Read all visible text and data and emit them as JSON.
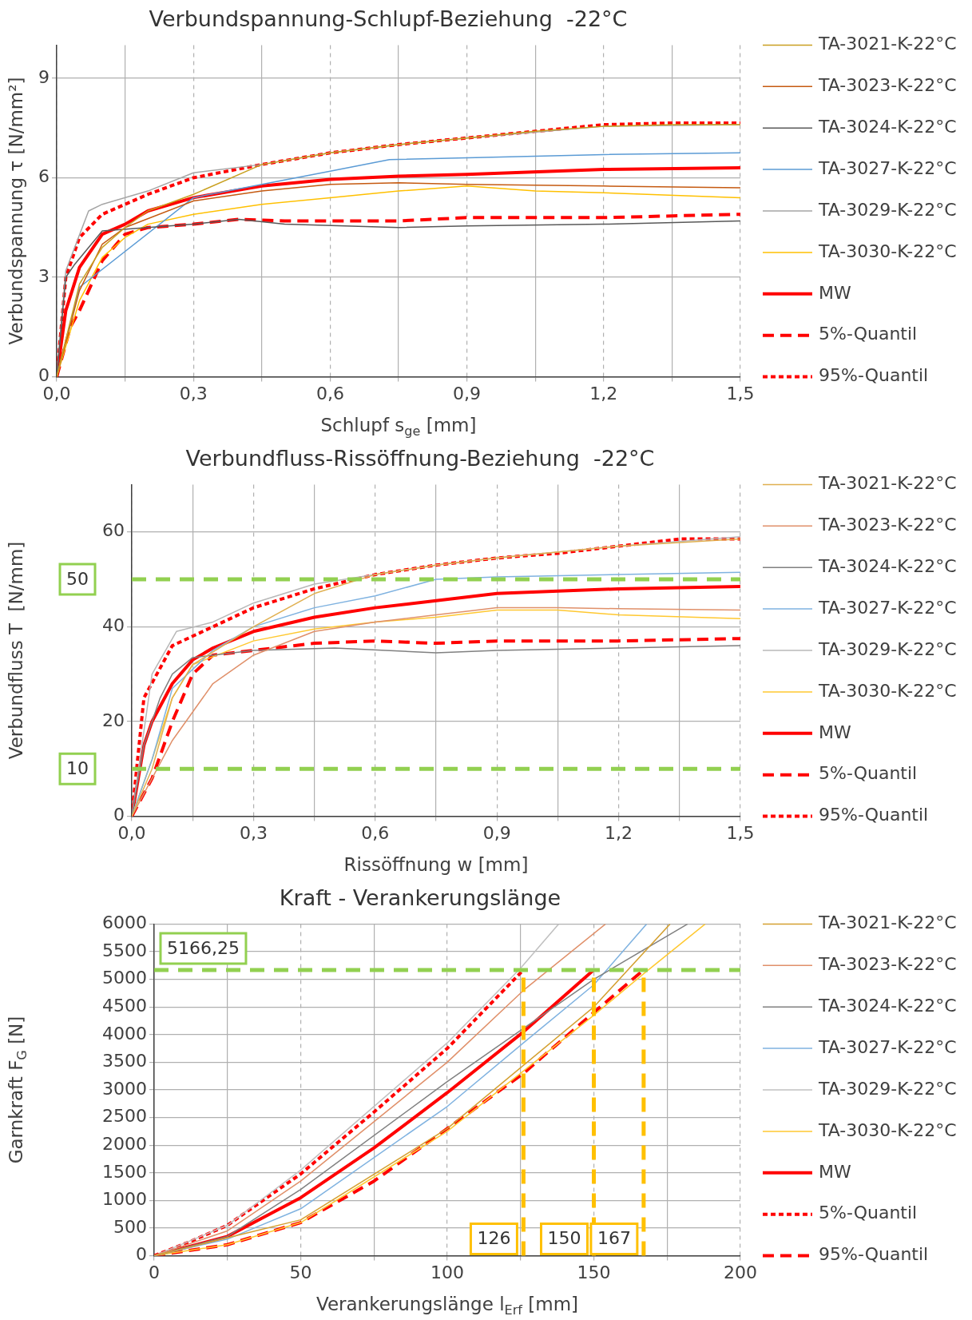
{
  "chart_data": [
    {
      "type": "line",
      "title": "Verbundspannung-Schlupf-Beziehung  -22°C",
      "xlabel": "Schlupf s$_{ge}$ [mm]",
      "ylabel": "Verbundspannung τ [N/mm²]",
      "xlim": [
        0,
        1.5
      ],
      "xticks": [
        {
          "value": 0,
          "label": "0,0"
        },
        {
          "value": 0.15,
          "label": null
        },
        {
          "value": 0.3,
          "label": "0,3"
        },
        {
          "value": 0.45,
          "label": null
        },
        {
          "value": 0.6,
          "label": "0,6"
        },
        {
          "value": 0.75,
          "label": null
        },
        {
          "value": 0.9,
          "label": "0,9"
        },
        {
          "value": 1.05,
          "label": null
        },
        {
          "value": 1.2,
          "label": "1,2"
        },
        {
          "value": 1.35,
          "label": null
        },
        {
          "value": 1.5,
          "label": "1,5"
        }
      ],
      "ylim": [
        0,
        10
      ],
      "yticks": [
        0,
        3,
        6,
        9
      ],
      "grid": true,
      "legend": "right",
      "marker": "none",
      "series": [
        {
          "name": "TA-3021-K-22°C",
          "color": "#c9a020",
          "x": [
            0,
            0.05,
            0.1,
            0.15,
            0.2,
            0.3,
            0.45,
            0.6,
            0.75,
            0.9,
            1.05,
            1.2,
            1.35,
            1.5
          ],
          "values": [
            0,
            2.8,
            3.9,
            4.5,
            5.0,
            5.5,
            6.4,
            6.75,
            7.0,
            7.2,
            7.4,
            7.55,
            7.6,
            7.6
          ]
        },
        {
          "name": "TA-3023-K-22°C",
          "color": "#c55a11",
          "x": [
            0,
            0.05,
            0.1,
            0.15,
            0.3,
            0.45,
            0.6,
            0.75,
            0.9,
            1.2,
            1.5
          ],
          "values": [
            0,
            2.6,
            4.0,
            4.5,
            5.3,
            5.6,
            5.8,
            5.85,
            5.8,
            5.75,
            5.7
          ]
        },
        {
          "name": "TA-3024-K-22°C",
          "color": "#595959",
          "x": [
            0,
            0.02,
            0.04,
            0.1,
            0.2,
            0.3,
            0.4,
            0.5,
            0.75,
            0.9,
            1.2,
            1.5
          ],
          "values": [
            0,
            3.0,
            3.4,
            4.4,
            4.5,
            4.6,
            4.75,
            4.6,
            4.5,
            4.55,
            4.6,
            4.7
          ]
        },
        {
          "name": "TA-3027-K-22°C",
          "color": "#5b9bd5",
          "x": [
            0,
            0.05,
            0.3,
            0.45,
            0.6,
            0.73,
            0.9,
            1.2,
            1.5
          ],
          "values": [
            0,
            2.7,
            5.4,
            5.8,
            6.2,
            6.55,
            6.6,
            6.7,
            6.75
          ]
        },
        {
          "name": "TA-3029-K-22°C",
          "color": "#a5a5a5",
          "x": [
            0,
            0.02,
            0.07,
            0.1,
            0.2,
            0.3,
            0.45,
            0.6,
            0.75,
            0.9,
            1.2,
            1.5
          ],
          "values": [
            0,
            3.2,
            5.0,
            5.2,
            5.6,
            6.15,
            6.4,
            6.75,
            7.0,
            7.2,
            7.55,
            7.6
          ]
        },
        {
          "name": "TA-3030-K-22°C",
          "color": "#ffc000",
          "x": [
            0,
            0.05,
            0.1,
            0.15,
            0.2,
            0.3,
            0.45,
            0.6,
            0.75,
            0.9,
            1.05,
            1.2,
            1.5
          ],
          "values": [
            0,
            2.3,
            3.6,
            4.2,
            4.6,
            4.9,
            5.2,
            5.4,
            5.6,
            5.75,
            5.6,
            5.55,
            5.4
          ]
        },
        {
          "name": "MW",
          "color": "#ff0000",
          "line_style": "solid",
          "x": [
            0,
            0.02,
            0.05,
            0.1,
            0.15,
            0.2,
            0.3,
            0.45,
            0.6,
            0.75,
            0.9,
            1.2,
            1.5
          ],
          "values": [
            0,
            2.0,
            3.3,
            4.3,
            4.6,
            5.0,
            5.4,
            5.75,
            5.95,
            6.05,
            6.1,
            6.25,
            6.3
          ]
        },
        {
          "name": "5%-Quantil",
          "color": "#ff0000",
          "line_style": "dashed",
          "x": [
            0,
            0.03,
            0.05,
            0.1,
            0.15,
            0.2,
            0.3,
            0.4,
            0.5,
            0.75,
            0.9,
            1.2,
            1.5
          ],
          "values": [
            0,
            1.5,
            2.0,
            3.5,
            4.3,
            4.5,
            4.6,
            4.75,
            4.7,
            4.7,
            4.8,
            4.8,
            4.9
          ]
        },
        {
          "name": "95%-Quantil",
          "color": "#ff0000",
          "line_style": "dotted",
          "x": [
            0,
            0.02,
            0.05,
            0.1,
            0.2,
            0.3,
            0.45,
            0.6,
            0.75,
            0.9,
            1.05,
            1.2,
            1.35,
            1.5
          ],
          "values": [
            0,
            3.0,
            4.2,
            4.9,
            5.5,
            6.0,
            6.4,
            6.75,
            7.0,
            7.2,
            7.4,
            7.6,
            7.65,
            7.65
          ]
        }
      ]
    },
    {
      "type": "line",
      "title": "Verbundfluss-Rissöffnung-Beziehung  -22°C",
      "xlabel": "Rissöffnung w [mm]",
      "ylabel": "Verbundfluss T  [N/mm]",
      "xlim": [
        0,
        1.5
      ],
      "xticks": [
        {
          "value": 0,
          "label": "0,0"
        },
        {
          "value": 0.15,
          "label": null
        },
        {
          "value": 0.3,
          "label": "0,3"
        },
        {
          "value": 0.45,
          "label": null
        },
        {
          "value": 0.6,
          "label": "0,6"
        },
        {
          "value": 0.75,
          "label": null
        },
        {
          "value": 0.9,
          "label": "0,9"
        },
        {
          "value": 1.05,
          "label": null
        },
        {
          "value": 1.2,
          "label": "1,2"
        },
        {
          "value": 1.35,
          "label": null
        },
        {
          "value": 1.5,
          "label": "1,5"
        }
      ],
      "ylim": [
        0,
        70
      ],
      "yticks": [
        0,
        20,
        40,
        60
      ],
      "grid": true,
      "legend": "right",
      "marker": "none",
      "ref_lines": [
        {
          "axis": "y",
          "value": 50,
          "label": "50",
          "color": "#92d050",
          "line_style": "dashed"
        },
        {
          "axis": "y",
          "value": 10,
          "label": "10",
          "color": "#92d050",
          "line_style": "dashed"
        }
      ],
      "series": [
        {
          "name": "TA-3021-K-22°C",
          "color": "#e0b050",
          "x": [
            0,
            0.05,
            0.1,
            0.15,
            0.3,
            0.45,
            0.6,
            0.75,
            0.9,
            1.2,
            1.5
          ],
          "values": [
            0,
            10,
            25,
            32,
            40,
            47,
            51,
            53,
            54.5,
            57,
            58.5
          ]
        },
        {
          "name": "TA-3023-K-22°C",
          "color": "#e0906a",
          "x": [
            0,
            0.05,
            0.1,
            0.2,
            0.3,
            0.45,
            0.6,
            0.75,
            0.9,
            1.05,
            1.2,
            1.5
          ],
          "values": [
            0,
            8,
            16,
            28,
            34,
            39,
            41,
            42.5,
            44,
            44,
            43.8,
            43.5
          ]
        },
        {
          "name": "TA-3024-K-22°C",
          "color": "#808080",
          "x": [
            0,
            0.03,
            0.07,
            0.1,
            0.15,
            0.3,
            0.5,
            0.75,
            0.9,
            1.2,
            1.5
          ],
          "values": [
            0,
            15,
            25,
            30,
            33.5,
            35,
            35.5,
            34.5,
            35,
            35.5,
            36
          ]
        },
        {
          "name": "TA-3027-K-22°C",
          "color": "#7fb2e0",
          "x": [
            0,
            0.05,
            0.1,
            0.2,
            0.3,
            0.45,
            0.6,
            0.75,
            0.9,
            1.2,
            1.5
          ],
          "values": [
            0,
            12,
            27,
            35,
            40,
            44,
            46.5,
            50,
            50.5,
            51,
            51.5
          ]
        },
        {
          "name": "TA-3029-K-22°C",
          "color": "#b8b8b8",
          "x": [
            0,
            0.05,
            0.11,
            0.2,
            0.3,
            0.45,
            0.6,
            0.75,
            0.9,
            1.2,
            1.5
          ],
          "values": [
            0,
            30,
            39,
            41,
            45,
            49,
            51,
            53,
            54.5,
            57,
            59
          ]
        },
        {
          "name": "TA-3030-K-22°C",
          "color": "#ffc830",
          "x": [
            0,
            0.05,
            0.1,
            0.15,
            0.3,
            0.45,
            0.6,
            0.75,
            0.9,
            1.05,
            1.2,
            1.5
          ],
          "values": [
            0,
            12,
            25,
            32,
            37,
            39.5,
            41,
            42,
            43.5,
            43.5,
            42.5,
            41.7
          ]
        },
        {
          "name": "MW",
          "color": "#ff0000",
          "line_style": "solid",
          "x": [
            0,
            0.03,
            0.05,
            0.1,
            0.15,
            0.2,
            0.3,
            0.45,
            0.6,
            0.75,
            0.9,
            1.05,
            1.2,
            1.5
          ],
          "values": [
            0,
            15,
            20,
            28,
            33,
            35.5,
            39,
            42,
            44,
            45.5,
            47,
            47.5,
            48,
            48.5
          ]
        },
        {
          "name": "5%-Quantil",
          "color": "#ff0000",
          "line_style": "dashed",
          "x": [
            0,
            0.05,
            0.1,
            0.15,
            0.2,
            0.3,
            0.45,
            0.6,
            0.75,
            0.9,
            1.05,
            1.2,
            1.5
          ],
          "values": [
            0,
            8,
            20,
            30,
            34,
            35,
            36.5,
            37,
            36.5,
            37,
            37,
            37,
            37.5
          ]
        },
        {
          "name": "95%-Quantil",
          "color": "#ff0000",
          "line_style": "dotted",
          "x": [
            0,
            0.03,
            0.1,
            0.2,
            0.3,
            0.45,
            0.6,
            0.75,
            0.9,
            1.05,
            1.2,
            1.35,
            1.5
          ],
          "values": [
            0,
            25,
            36,
            40,
            44,
            48,
            51,
            53,
            54.5,
            55.5,
            57,
            58.5,
            58.5
          ]
        }
      ]
    },
    {
      "type": "line",
      "title": "Kraft - Verankerungslänge",
      "xlabel": "Verankerungslänge l$_{Erf}$ [mm]",
      "ylabel": "Garnkraft F$_{G}$ [N]",
      "xlim": [
        0,
        200
      ],
      "xticks": [
        0,
        {
          "value": 25,
          "label": null
        },
        50,
        {
          "value": 75,
          "label": null
        },
        100,
        {
          "value": 125,
          "label": null
        },
        150,
        {
          "value": 175,
          "label": null
        },
        200
      ],
      "ylim": [
        0,
        6000
      ],
      "yticks": [
        0,
        500,
        1000,
        1500,
        2000,
        2500,
        3000,
        3500,
        4000,
        4500,
        5000,
        5500,
        6000
      ],
      "grid": true,
      "legend": "right",
      "marker": "none",
      "ref_lines": [
        {
          "axis": "y",
          "value": 5166.25,
          "label": "5166,25",
          "color": "#92d050",
          "line_style": "dashed"
        },
        {
          "axis": "x",
          "value": 126,
          "label": "126",
          "color": "#ffc000",
          "line_style": "dashed"
        },
        {
          "axis": "x",
          "value": 150,
          "label": "150",
          "color": "#ffc000",
          "line_style": "dashed"
        },
        {
          "axis": "x",
          "value": 167,
          "label": "167",
          "color": "#ffc000",
          "line_style": "dashed"
        }
      ],
      "series": [
        {
          "name": "TA-3021-K-22°C",
          "color": "#d4a030",
          "x": [
            0,
            50,
            100,
            150,
            176
          ],
          "values": [
            0,
            650,
            2300,
            4500,
            6000
          ]
        },
        {
          "name": "TA-3023-K-22°C",
          "color": "#e0906a",
          "x": [
            0,
            25,
            50,
            100,
            126,
            154
          ],
          "values": [
            0,
            450,
            1350,
            3500,
            4800,
            6000
          ]
        },
        {
          "name": "TA-3024-K-22°C",
          "color": "#808080",
          "x": [
            0,
            25,
            50,
            100,
            150,
            182
          ],
          "values": [
            0,
            350,
            1200,
            3150,
            5000,
            6000
          ]
        },
        {
          "name": "TA-3027-K-22°C",
          "color": "#7fb2e0",
          "x": [
            0,
            25,
            50,
            100,
            126,
            150,
            168
          ],
          "values": [
            0,
            300,
            850,
            2700,
            3850,
            4900,
            6000
          ]
        },
        {
          "name": "TA-3029-K-22°C",
          "color": "#c0c0c0",
          "x": [
            0,
            25,
            50,
            100,
            125,
            138
          ],
          "values": [
            0,
            550,
            1550,
            3850,
            5200,
            6000
          ]
        },
        {
          "name": "TA-3030-K-22°C",
          "color": "#ffc830",
          "x": [
            0,
            25,
            50,
            100,
            150,
            167,
            188
          ],
          "values": [
            0,
            200,
            600,
            2250,
            4350,
            5100,
            6000
          ]
        },
        {
          "name": "MW",
          "color": "#ff0000",
          "line_style": "solid",
          "x": [
            0,
            25,
            50,
            75,
            100,
            126,
            150
          ],
          "values": [
            0,
            350,
            1050,
            1950,
            2950,
            4050,
            5170
          ]
        },
        {
          "name": "5%-Quantil",
          "color": "#ff0000",
          "line_style": "dotted",
          "x": [
            0,
            12,
            25,
            50,
            75,
            100,
            126
          ],
          "values": [
            0,
            250,
            550,
            1480,
            2600,
            3750,
            5170
          ]
        },
        {
          "name": "95%-Quantil",
          "color": "#ff0000",
          "line_style": "dashed",
          "x": [
            0,
            25,
            50,
            75,
            100,
            126,
            150,
            167
          ],
          "values": [
            0,
            200,
            600,
            1350,
            2300,
            3300,
            4400,
            5170
          ]
        }
      ]
    }
  ]
}
